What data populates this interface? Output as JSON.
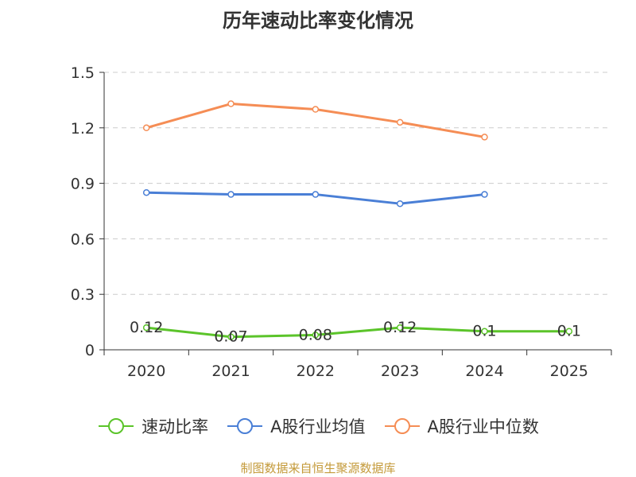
{
  "title": "历年速动比率变化情况",
  "source": "制图数据来自恒生聚源数据库",
  "chart_data": {
    "type": "line",
    "categories": [
      "2020",
      "2021",
      "2022",
      "2023",
      "2024",
      "2025"
    ],
    "y_ticks": [
      "0",
      "0.3",
      "0.6",
      "0.9",
      "1.2",
      "1.5"
    ],
    "ylim": [
      0,
      1.5
    ],
    "grid": true,
    "legend_position": "bottom",
    "series": [
      {
        "name": "速动比率",
        "color": "#5bc42a",
        "values": [
          0.12,
          0.07,
          0.08,
          0.12,
          0.1,
          0.1
        ],
        "labels": [
          "0.12",
          "0.07",
          "0.08",
          "0.12",
          "0.1",
          "0.1"
        ]
      },
      {
        "name": "A股行业均值",
        "color": "#4a7fd6",
        "values": [
          0.85,
          0.84,
          0.84,
          0.79,
          0.84,
          null
        ]
      },
      {
        "name": "A股行业中位数",
        "color": "#f58d55",
        "values": [
          1.2,
          1.33,
          1.3,
          1.23,
          1.15,
          null
        ]
      }
    ]
  }
}
